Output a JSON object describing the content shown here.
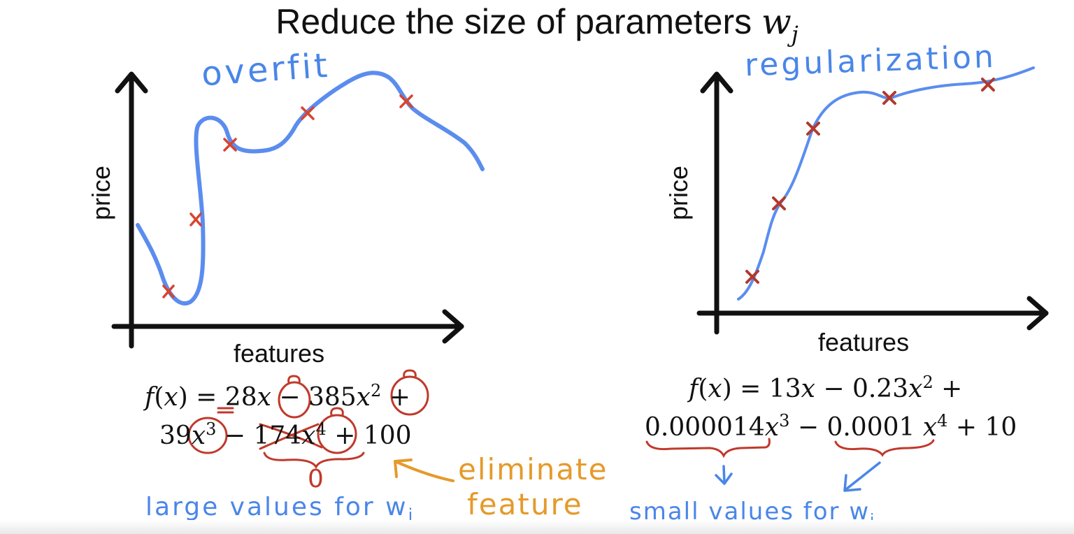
{
  "title": {
    "text": "Reduce the size of parameters ",
    "param": "w",
    "param_sub": "j"
  },
  "left_panel": {
    "annotation": "overfit",
    "y_label": "price",
    "x_label": "features",
    "equation_line1": [
      "f",
      "(",
      "x",
      ") = 28",
      "x",
      " − 385",
      "x",
      "2",
      " +"
    ],
    "equation_line2": [
      "39",
      "x",
      "3",
      " − ",
      "174",
      "x",
      "4",
      " + 100"
    ],
    "zero_note": "0",
    "eliminate_note": "eliminate",
    "feature_note": "feature",
    "large_values_note": "large values for w",
    "large_values_sub": "j"
  },
  "right_panel": {
    "annotation": "regularization",
    "y_label": "price",
    "x_label": "features",
    "equation_line1": [
      "f",
      "(",
      "x",
      ") = 13",
      "x",
      " − 0.23",
      "x",
      "2",
      " +"
    ],
    "equation_line2": [
      "0.000014",
      "x",
      "3",
      " − ",
      "0.0001",
      " ",
      "x",
      "4",
      " + 10"
    ],
    "small_values_note": "small values for w",
    "small_values_sub": "j"
  },
  "colors": {
    "curve": "#5b8def",
    "marker": "#c0392b",
    "note_blue": "#4a86e8",
    "note_orange": "#e59a2a",
    "axis": "#111111"
  }
}
